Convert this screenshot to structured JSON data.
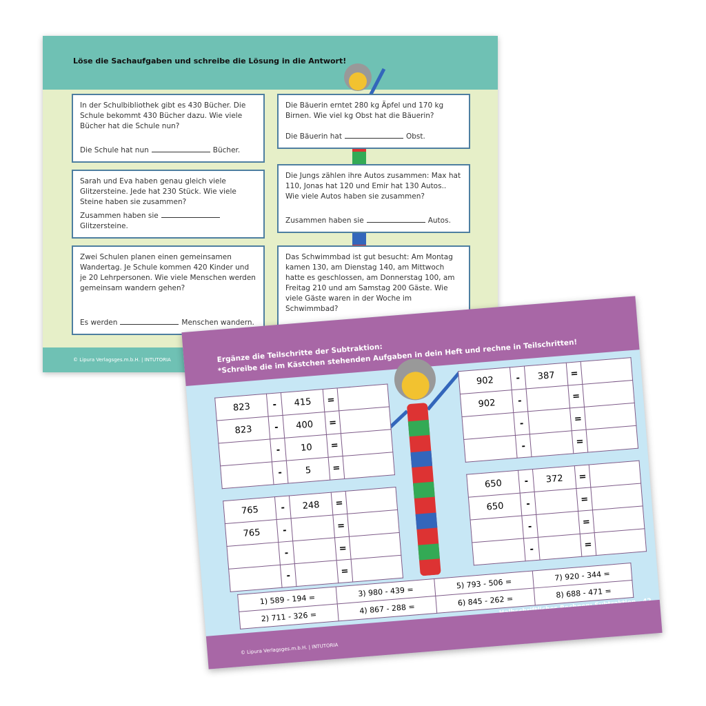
{
  "sheet1": {
    "instruction": "Löse die Sachaufgaben und schreibe die Lösung in die Antwort!",
    "tasks": [
      {
        "text": "In der Schulbibliothek gibt es 430 Bücher. Die Schule bekommt 430 Bücher dazu. Wie viele Bücher hat die Schule nun?",
        "answer_pre": "Die Schule hat nun",
        "answer_post": "Bücher."
      },
      {
        "text": "Die Bäuerin erntet 280 kg Äpfel und 170 kg Birnen. Wie viel kg Obst hat die Bäuerin?",
        "answer_pre": "Die Bäuerin hat",
        "answer_post": "Obst."
      },
      {
        "text": "Sarah und Eva haben genau gleich viele Glitzersteine. Jede hat 230 Stück. Wie viele Steine haben sie zusammen?",
        "answer_pre": "Zusammen haben sie",
        "answer_post": "Glitzersteine."
      },
      {
        "text": "Die Jungs zählen ihre Autos zusammen: Max hat 110, Jonas hat 120 und Emir hat 130 Autos.. Wie viele Autos haben sie zusammen?",
        "answer_pre": "Zusammen haben sie",
        "answer_post": "Autos."
      },
      {
        "text": "Zwei Schulen planen einen gemeinsamen Wandertag. Je Schule kommen 420 Kinder und je 20 Lehrpersonen. Wie viele Menschen werden gemeinsam wandern gehen?",
        "answer_pre": "Es werden",
        "answer_post": "Menschen wandern."
      },
      {
        "text": "Das Schwimmbad ist gut besucht: Am Montag kamen 130, am Dienstag 140, am Mittwoch hatte es geschlossen, am Donnerstag 100, am Freitag 210 und am Samstag 200 Gäste. Wie viele Gäste waren in der Woche im Schwimmbad?",
        "answer_pre": "",
        "answer_post": ""
      }
    ],
    "copyright": "© Lipura Verlagsges.m.b.H. | INTUTORIA"
  },
  "sheet2": {
    "instruction1": "Ergänze die Teilschritte der Subtraktion:",
    "instruction2": "*Schreibe die im Kästchen stehenden Aufgaben in dein Heft und rechne in Teilschritten!",
    "grids": [
      [
        [
          "823",
          "-",
          "415",
          "="
        ],
        [
          "823",
          "-",
          "400",
          "="
        ],
        [
          "",
          "-",
          "10",
          "="
        ],
        [
          "",
          "-",
          "5",
          "="
        ]
      ],
      [
        [
          "765",
          "-",
          "248",
          "="
        ],
        [
          "765",
          "-",
          "",
          "="
        ],
        [
          "",
          "-",
          "",
          "="
        ],
        [
          "",
          "-",
          "",
          "="
        ]
      ],
      [
        [
          "902",
          "-",
          "387",
          "="
        ],
        [
          "902",
          "-",
          "",
          "="
        ],
        [
          "",
          "-",
          "",
          "="
        ],
        [
          "",
          "-",
          "",
          "="
        ]
      ],
      [
        [
          "650",
          "-",
          "372",
          "="
        ],
        [
          "650",
          "-",
          "",
          "="
        ],
        [
          "",
          "-",
          "",
          "="
        ],
        [
          "",
          "-",
          "",
          "="
        ]
      ]
    ],
    "exercises": [
      [
        "1) 589 - 194 =",
        "3) 980 - 439 =",
        "5) 793 - 506 =",
        "7) 920 - 344 ="
      ],
      [
        "2) 711 - 326 =",
        "4) 867 - 288 =",
        "6) 845 - 262 =",
        "8) 688 - 471 ="
      ]
    ],
    "page_label": "Halbschriftliches Rechnen: Subtraktion - 42",
    "copyright": "© Lipura Verlagsges.m.b.H. | INTUTORIA"
  },
  "colors": {
    "teal": "#6fc1b4",
    "purple": "#a867a6",
    "lightblue": "#c7e7f5",
    "lightgreen": "#e6efc8"
  }
}
